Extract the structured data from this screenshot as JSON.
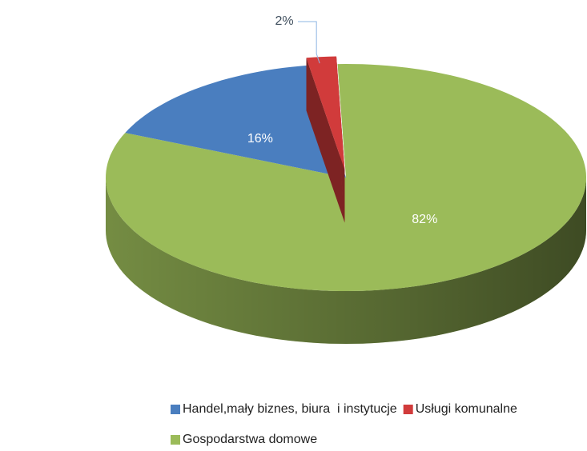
{
  "chart_data": {
    "type": "pie3d",
    "series": [
      {
        "name": "Handel,mały biznes, biura  i instytucje",
        "color": "#4a7ebf"
      },
      {
        "name": "Usługi komunalne",
        "color": "#d13b3b"
      },
      {
        "name": "Gospodarstwa domowe",
        "color": "#9bbb59"
      }
    ],
    "values": [
      16,
      2,
      82
    ],
    "value_labels": [
      "16%",
      "2%",
      "82%"
    ],
    "legend": "bottom"
  }
}
